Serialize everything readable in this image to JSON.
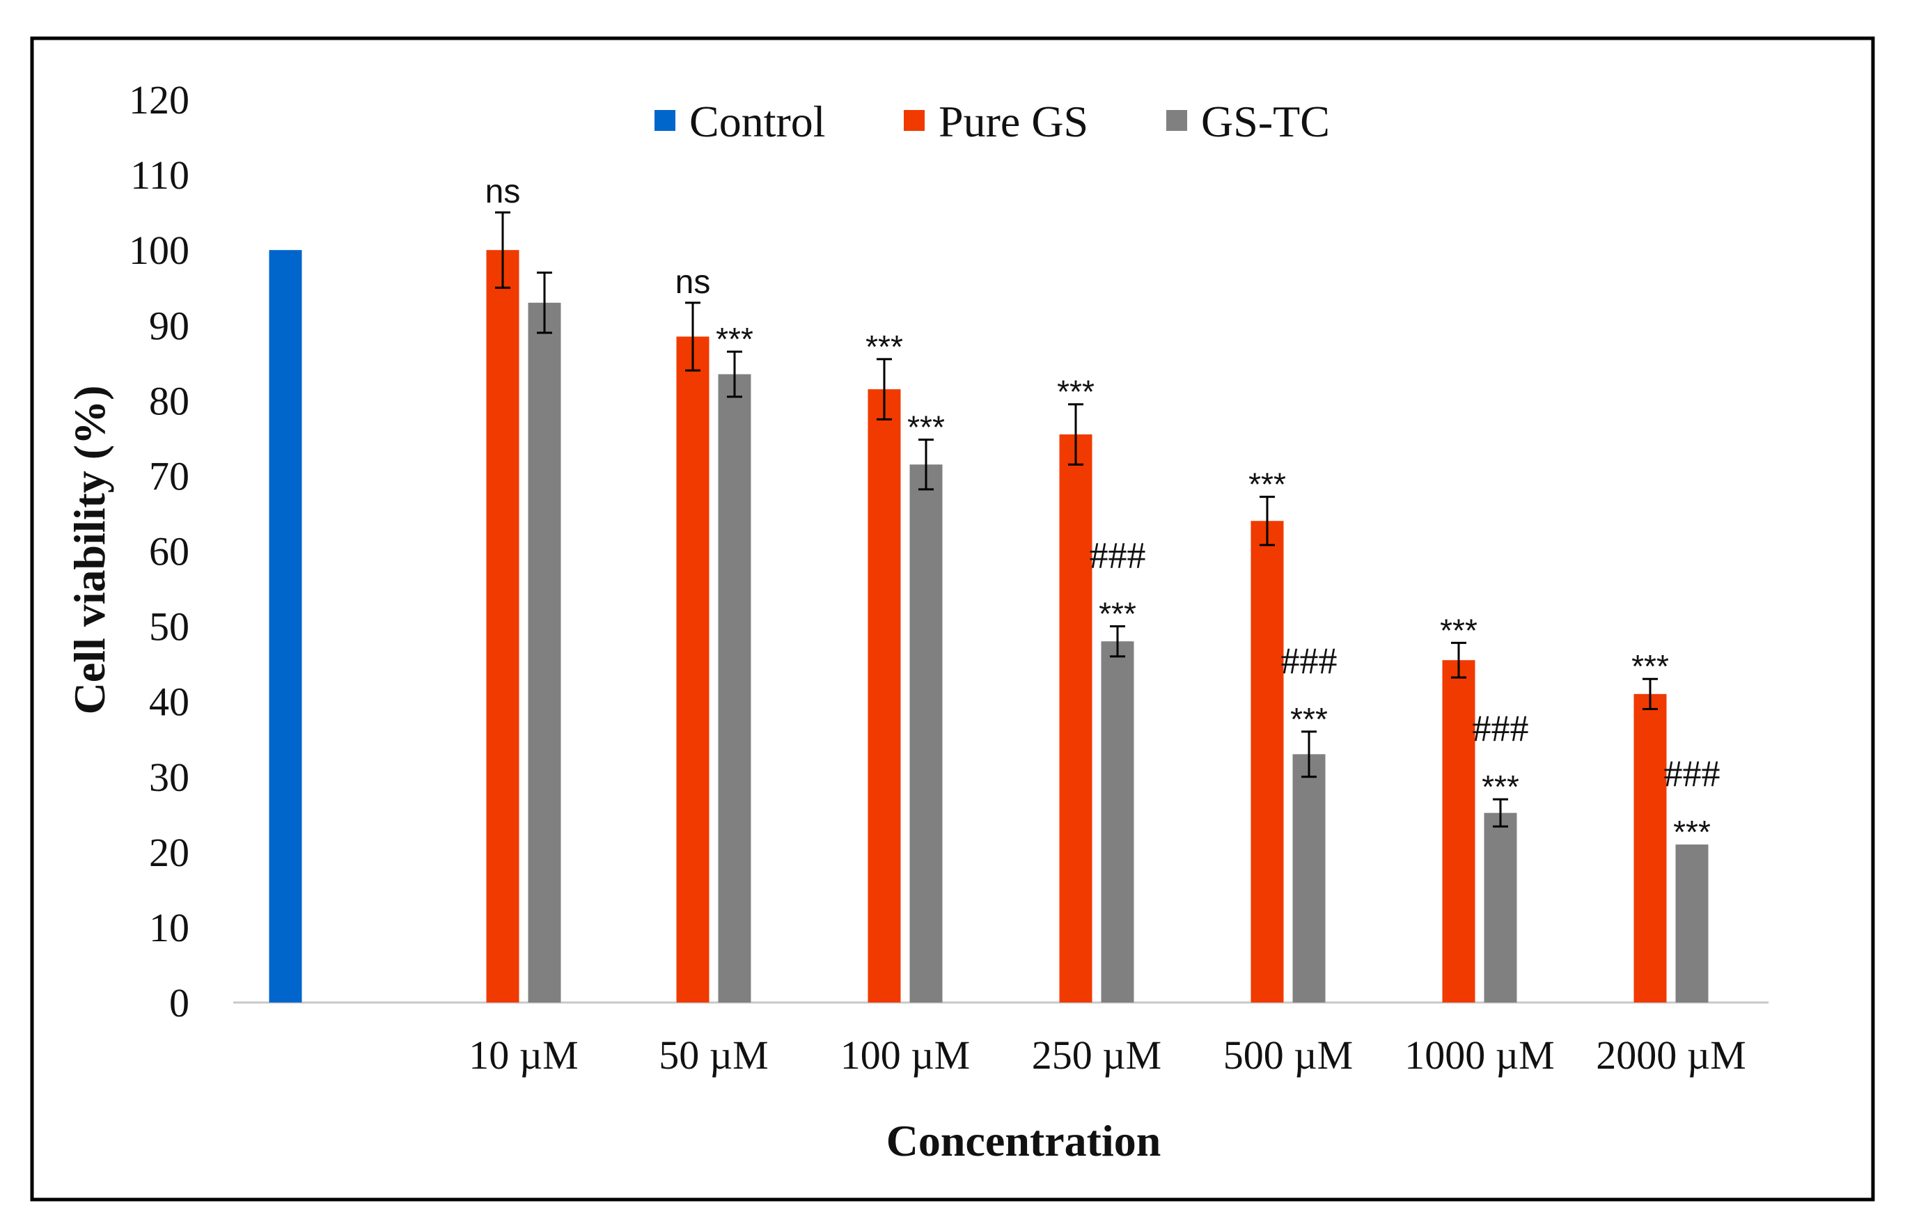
{
  "chart_data": {
    "type": "bar",
    "title": "",
    "xlabel": "Concentration",
    "ylabel": "Cell viability (%)",
    "ylim": [
      0,
      120
    ],
    "yticks": [
      0,
      10,
      20,
      30,
      40,
      50,
      60,
      70,
      80,
      90,
      100,
      110,
      120
    ],
    "grid": false,
    "legend_position": "top-center",
    "categories": [
      "",
      "10 µM",
      "50 µM",
      "100 µM",
      "250 µM",
      "500 µM",
      "1000 µM",
      "2000 µM"
    ],
    "series": [
      {
        "name": "Control",
        "color": "#0066cc",
        "values": [
          100,
          null,
          null,
          null,
          null,
          null,
          null,
          null
        ],
        "errors": [
          null,
          null,
          null,
          null,
          null,
          null,
          null,
          null
        ]
      },
      {
        "name": "Pure GS",
        "color": "#f03a00",
        "values": [
          null,
          100,
          88.5,
          81.5,
          75.5,
          64,
          45.5,
          41
        ],
        "errors": [
          null,
          5,
          4.5,
          4,
          4,
          3.2,
          2.3,
          2
        ]
      },
      {
        "name": "GS-TC",
        "color": "#808080",
        "values": [
          null,
          93,
          83.5,
          71.5,
          48,
          33,
          25.2,
          21
        ],
        "errors": [
          null,
          4,
          3,
          3.3,
          2,
          3,
          1.8,
          0
        ]
      }
    ],
    "annotations": [
      {
        "series": "Pure GS",
        "category": "10 µM",
        "lines": [
          "ns"
        ]
      },
      {
        "series": "Pure GS",
        "category": "50 µM",
        "lines": [
          "ns"
        ]
      },
      {
        "series": "GS-TC",
        "category": "50 µM",
        "lines": [
          "***"
        ]
      },
      {
        "series": "Pure GS",
        "category": "100 µM",
        "lines": [
          "***"
        ]
      },
      {
        "series": "GS-TC",
        "category": "100 µM",
        "lines": [
          "***"
        ]
      },
      {
        "series": "Pure GS",
        "category": "250 µM",
        "lines": [
          "***"
        ]
      },
      {
        "series": "GS-TC",
        "category": "250 µM",
        "lines": [
          "###",
          "***"
        ]
      },
      {
        "series": "Pure GS",
        "category": "500 µM",
        "lines": [
          "***"
        ]
      },
      {
        "series": "GS-TC",
        "category": "500 µM",
        "lines": [
          "###",
          "***"
        ]
      },
      {
        "series": "Pure GS",
        "category": "1000 µM",
        "lines": [
          "***"
        ]
      },
      {
        "series": "GS-TC",
        "category": "1000 µM",
        "lines": [
          "###",
          "***"
        ]
      },
      {
        "series": "Pure GS",
        "category": "2000 µM",
        "lines": [
          "***"
        ]
      },
      {
        "series": "GS-TC",
        "category": "2000 µM",
        "lines": [
          "###",
          "***"
        ]
      }
    ]
  }
}
